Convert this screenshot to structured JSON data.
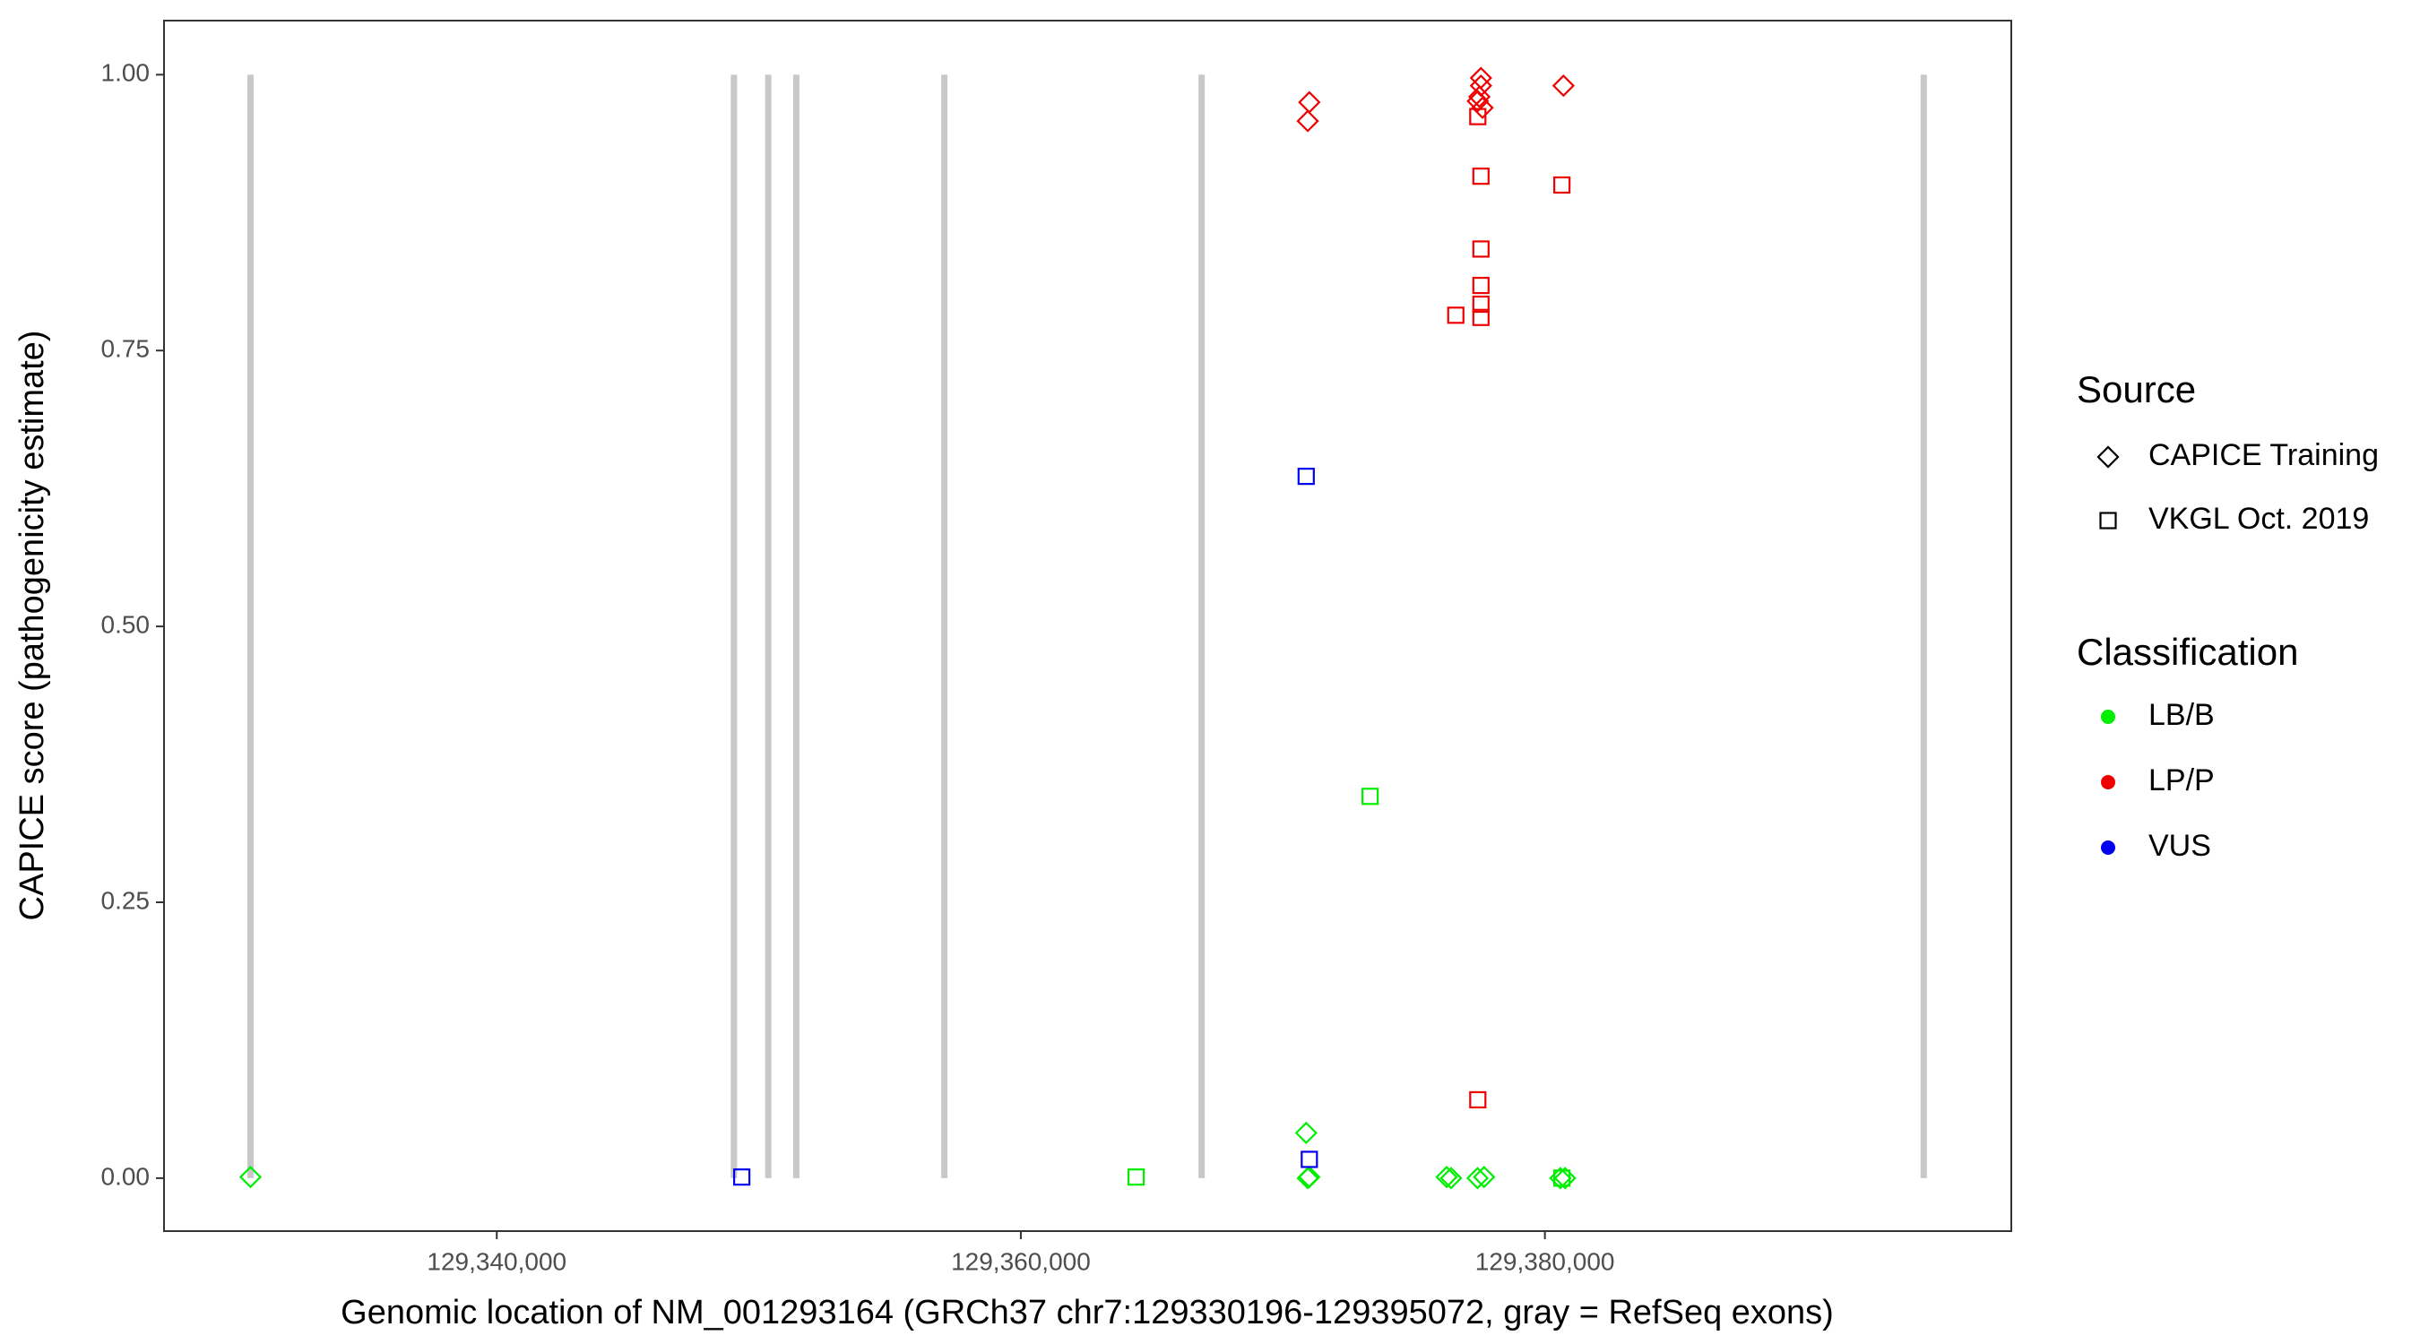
{
  "chart_data": {
    "type": "scatter",
    "x_label": "Genomic location of NM_001293164 (GRCh37 chr7:129330196-129395072, gray = RefSeq exons)",
    "y_label": "CAPICE score (pathogenicity estimate)",
    "xlim": [
      129327300,
      129397800
    ],
    "ylim": [
      -0.048,
      1.049
    ],
    "xticks": [
      {
        "value": 129340000,
        "label": "129,340,000"
      },
      {
        "value": 129360000,
        "label": "129,360,000"
      },
      {
        "value": 129380000,
        "label": "129,380,000"
      }
    ],
    "yticks": [
      {
        "value": 0,
        "label": "0.00"
      },
      {
        "value": 0.25,
        "label": "0.25"
      },
      {
        "value": 0.5,
        "label": "0.50"
      },
      {
        "value": 0.75,
        "label": "0.75"
      },
      {
        "value": 1,
        "label": "1.00"
      }
    ],
    "exons": {
      "color": "#c8c8c8",
      "x": [
        129330600,
        129349050,
        129350360,
        129351430,
        129357080,
        129366900,
        129394460
      ]
    },
    "shape_legend": {
      "title": "Source",
      "items": [
        {
          "label": "CAPICE Training",
          "shape": "diamond"
        },
        {
          "label": "VKGL Oct. 2019",
          "shape": "square"
        }
      ]
    },
    "color_legend_title": "Classification",
    "series": [
      {
        "name": "LB/B",
        "color": "#00ee00",
        "diamond": {
          "x": [
            129330600,
            129370890,
            129370950,
            129371010,
            129376250,
            129376420,
            129377430,
            129377680,
            129380590,
            129380770
          ],
          "y": [
            0.001,
            0.041,
            0.0,
            0.001,
            0.001,
            0.0,
            0.0,
            0.001,
            0.0,
            0.0
          ]
        },
        "square": {
          "x": [
            129364400,
            129373330,
            129380650
          ],
          "y": [
            0.001,
            0.346,
            0.0
          ]
        }
      },
      {
        "name": "LP/P",
        "color": "#ee0000",
        "diamond": {
          "x": [
            129371010,
            129370950,
            129377560,
            129377560,
            129377500,
            129377440,
            129377620,
            129380710
          ],
          "y": [
            0.975,
            0.958,
            0.997,
            0.99,
            0.98,
            0.976,
            0.97,
            0.99
          ]
        },
        "square": {
          "x": [
            129377560,
            129380650,
            129377560,
            129377560,
            129377560,
            129377560,
            129376600,
            129377440,
            129377440
          ],
          "y": [
            0.908,
            0.9,
            0.842,
            0.809,
            0.792,
            0.78,
            0.782,
            0.071,
            0.962
          ]
        }
      },
      {
        "name": "VUS",
        "color": "#0000ee",
        "diamond": {
          "x": [],
          "y": []
        },
        "square": {
          "x": [
            129349350,
            129370890,
            129371010
          ],
          "y": [
            0.001,
            0.636,
            0.017
          ]
        }
      }
    ]
  }
}
